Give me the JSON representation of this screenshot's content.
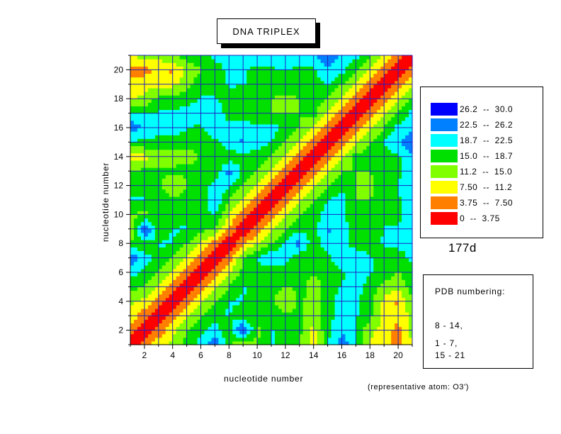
{
  "chart_data": {
    "type": "heatmap",
    "subtype": "filled contour plot (distance matrix)",
    "title": "DNA TRIPLEX",
    "xlabel": "nucleotide number",
    "ylabel": "nucleotide number",
    "xlim": [
      1,
      21
    ],
    "ylim": [
      1,
      21
    ],
    "x_ticks": [
      2,
      4,
      6,
      8,
      10,
      12,
      14,
      16,
      18,
      20
    ],
    "y_ticks": [
      2,
      4,
      6,
      8,
      10,
      12,
      14,
      16,
      18,
      20
    ],
    "grid": true,
    "levels": [
      {
        "label": "26.2  --  30.0",
        "min": 26.2,
        "max": 30.0,
        "color": "#0000ff"
      },
      {
        "label": "22.5  --  26.2",
        "min": 22.5,
        "max": 26.2,
        "color": "#0080ff"
      },
      {
        "label": "18.7  --  22.5",
        "min": 18.7,
        "max": 22.5,
        "color": "#00ffff"
      },
      {
        "label": "15.0  --  18.7",
        "min": 15.0,
        "max": 18.7,
        "color": "#00e000"
      },
      {
        "label": "11.2  --  15.0",
        "min": 11.2,
        "max": 15.0,
        "color": "#80ff00"
      },
      {
        "label": "7.50  --  11.2",
        "min": 7.5,
        "max": 11.2,
        "color": "#ffff00"
      },
      {
        "label": "3.75  --  7.50",
        "min": 3.75,
        "max": 7.5,
        "color": "#ff8000"
      },
      {
        "label": "0  --  3.75",
        "min": 0,
        "max": 3.75,
        "color": "#ff0000"
      }
    ],
    "matrix": [
      [
        0,
        5,
        10,
        12,
        16,
        20,
        27,
        16,
        10,
        15,
        19,
        17,
        15,
        9,
        18,
        25,
        19,
        11,
        8,
        7,
        11
      ],
      [
        5,
        0,
        5,
        10,
        15,
        18,
        20,
        16,
        28,
        14,
        19,
        18,
        16,
        10,
        18,
        22,
        19,
        12,
        10,
        6,
        13
      ],
      [
        10,
        5,
        0,
        5,
        10,
        15,
        18,
        19,
        16,
        16,
        17,
        17,
        16,
        12,
        17,
        21,
        19,
        16,
        10,
        8,
        13
      ],
      [
        12,
        10,
        5,
        0,
        5,
        10,
        15,
        19,
        19,
        16,
        17,
        10,
        16,
        13,
        17,
        21,
        20,
        16,
        10,
        7,
        14
      ],
      [
        16,
        15,
        10,
        5,
        0,
        5,
        10,
        15,
        19,
        17,
        16,
        15,
        16,
        14,
        16,
        19,
        20,
        17,
        14,
        12,
        17
      ],
      [
        20,
        18,
        15,
        10,
        5,
        0,
        5,
        11,
        16,
        16,
        16,
        16,
        16,
        15,
        16,
        18,
        21,
        19,
        17,
        15,
        17
      ],
      [
        27,
        20,
        18,
        15,
        10,
        5,
        0,
        5,
        15,
        19,
        23,
        20,
        16,
        15,
        18,
        21,
        21,
        19,
        17,
        16,
        20
      ],
      [
        16,
        16,
        19,
        19,
        15,
        11,
        5,
        0,
        7,
        11,
        15,
        19,
        24,
        16,
        21,
        20,
        17,
        17,
        19,
        20,
        21
      ],
      [
        10,
        28,
        16,
        19,
        19,
        16,
        15,
        7,
        0,
        5,
        10,
        15,
        18,
        17,
        23,
        21,
        16,
        16,
        19,
        19,
        20
      ],
      [
        15,
        14,
        16,
        16,
        17,
        16,
        19,
        11,
        5,
        0,
        5,
        10,
        15,
        17,
        20,
        20,
        15,
        15,
        18,
        18,
        21
      ],
      [
        19,
        19,
        17,
        17,
        16,
        16,
        23,
        15,
        10,
        5,
        0,
        5,
        10,
        15,
        19,
        20,
        15,
        15,
        17,
        18,
        21
      ],
      [
        17,
        18,
        17,
        10,
        15,
        16,
        20,
        19,
        15,
        10,
        5,
        0,
        5,
        10,
        15,
        18,
        15,
        14,
        17,
        19,
        21
      ],
      [
        15,
        16,
        16,
        16,
        16,
        16,
        16,
        24,
        18,
        15,
        10,
        5,
        0,
        5,
        10,
        15,
        15,
        15,
        16,
        18,
        20
      ],
      [
        9,
        10,
        12,
        13,
        14,
        15,
        15,
        16,
        17,
        17,
        15,
        10,
        5,
        0,
        5,
        10,
        17,
        16,
        17,
        18,
        22
      ],
      [
        18,
        18,
        17,
        17,
        16,
        16,
        18,
        21,
        23,
        20,
        19,
        15,
        10,
        5,
        0,
        5,
        10,
        15,
        19,
        22,
        25
      ],
      [
        25,
        22,
        21,
        21,
        19,
        18,
        21,
        20,
        21,
        20,
        20,
        18,
        15,
        10,
        5,
        0,
        5,
        10,
        15,
        20,
        22
      ],
      [
        19,
        19,
        19,
        20,
        20,
        21,
        21,
        17,
        16,
        15,
        15,
        15,
        15,
        17,
        10,
        5,
        0,
        5,
        10,
        15,
        20
      ],
      [
        11,
        12,
        16,
        16,
        17,
        19,
        19,
        17,
        16,
        15,
        15,
        14,
        15,
        16,
        15,
        10,
        5,
        0,
        5,
        10,
        15
      ],
      [
        8,
        10,
        10,
        10,
        14,
        17,
        17,
        19,
        19,
        18,
        17,
        17,
        16,
        17,
        19,
        15,
        10,
        5,
        0,
        5,
        10
      ],
      [
        7,
        6,
        8,
        7,
        12,
        15,
        16,
        20,
        19,
        18,
        18,
        19,
        18,
        18,
        22,
        20,
        15,
        10,
        5,
        0,
        5
      ],
      [
        11,
        13,
        13,
        14,
        17,
        17,
        20,
        21,
        20,
        21,
        21,
        21,
        20,
        22,
        25,
        22,
        20,
        15,
        10,
        5,
        0
      ]
    ]
  },
  "pdb_id": "177d",
  "info": {
    "header": "PDB numbering:",
    "ranges": [
      "8 - 14,",
      "1 - 7,",
      "15 - 21"
    ]
  },
  "note": "(representative atom: O3')"
}
